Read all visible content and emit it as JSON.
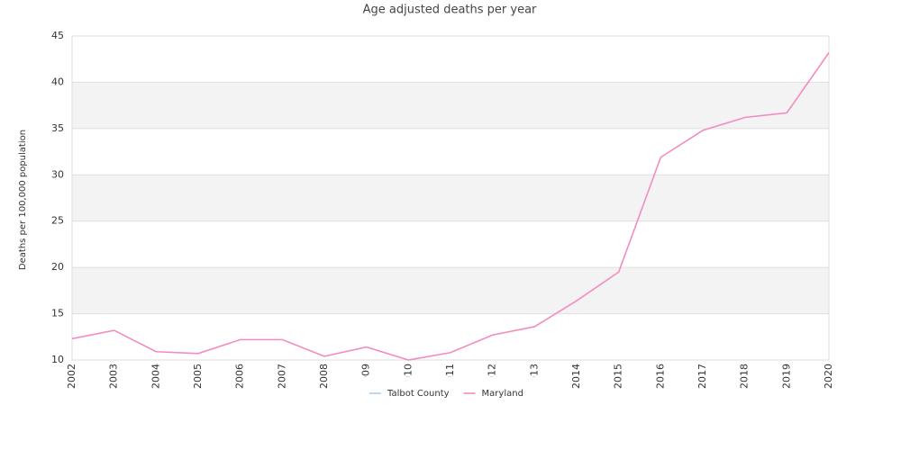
{
  "chart_data": {
    "type": "line",
    "title": "Age adjusted deaths per year",
    "y_label": "Deaths per 100,000 population",
    "categories": [
      "2002",
      "2003",
      "2004",
      "2005",
      "2006",
      "2007",
      "2008",
      "2009",
      "2010",
      "2011",
      "2012",
      "2013",
      "2014",
      "2015",
      "2016",
      "2017",
      "2018",
      "2019",
      "2020"
    ],
    "series": [
      {
        "name": "Talbot County",
        "color": "#a9cbee",
        "values": [
          null,
          null,
          null,
          null,
          null,
          null,
          null,
          null,
          null,
          null,
          null,
          null,
          null,
          null,
          null,
          null,
          null,
          null,
          null
        ]
      },
      {
        "name": "Maryland",
        "color": "#f28cc0",
        "values": [
          12.3,
          13.2,
          10.9,
          10.7,
          12.2,
          12.2,
          10.4,
          11.4,
          10.0,
          10.8,
          12.7,
          13.6,
          16.4,
          19.5,
          31.9,
          34.8,
          36.2,
          36.7,
          43.2
        ]
      }
    ],
    "ylim": [
      10,
      45
    ],
    "yticks": [
      10,
      15,
      20,
      25,
      30,
      35,
      40,
      45
    ],
    "grid": true,
    "legend": "bottom"
  }
}
